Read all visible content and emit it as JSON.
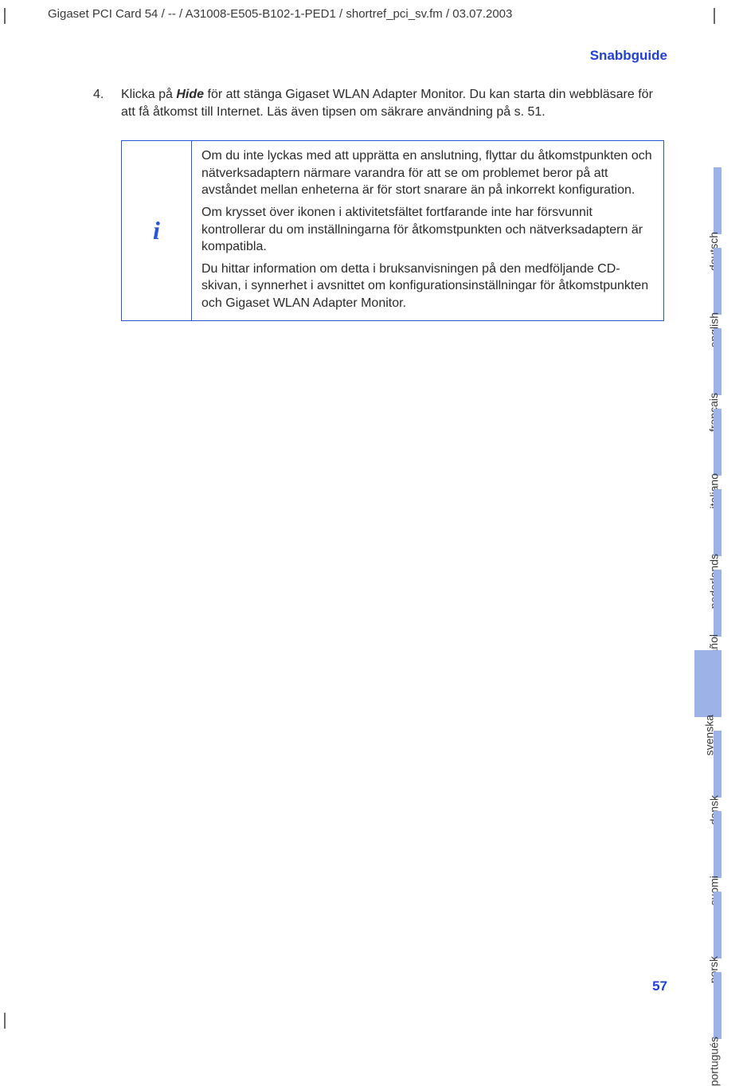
{
  "header": "Gigaset PCI Card 54 / -- / A31008-E505-B102-1-PED1 / shortref_pci_sv.fm / 03.07.2003",
  "section_title": "Snabbguide",
  "page_number": "57",
  "list": {
    "num": "4.",
    "pre": "Klicka på ",
    "bold": "Hide",
    "post": " för att stänga Gigaset WLAN Adapter Monitor. Du kan starta din webbläsare för att få åtkomst till Internet. Läs även tipsen om säkrare användning på s. 51."
  },
  "info": {
    "icon": "i",
    "p1": "Om du inte lyckas med att upprätta en anslutning, flyttar du åtkomstpunkten och nätverksadaptern närmare varandra för att se om problemet beror på att avståndet mellan enheterna är för stort snarare än på inkorrekt konfiguration.",
    "p2": "Om krysset över ikonen i aktivitetsfältet fortfarande inte har försvunnit kontrollerar du om inställningarna för åtkomstpunkten och nätverksadaptern är kompatibla.",
    "p3": "Du hittar information om detta i bruksanvisningen på den medföljande CD-skivan, i synnerhet i avsnittet om konfigurationsinställningar för åtkomstpunkten och Gigaset WLAN Adapter Monitor."
  },
  "tabs": [
    {
      "label": "deutsch",
      "active": false
    },
    {
      "label": "english",
      "active": false
    },
    {
      "label": "français",
      "active": false
    },
    {
      "label": "italiano",
      "active": false
    },
    {
      "label": "nederlands",
      "active": false
    },
    {
      "label": "español",
      "active": false
    },
    {
      "label": "svenska",
      "active": true
    },
    {
      "label": "dansk",
      "active": false
    },
    {
      "label": "suomi",
      "active": false
    },
    {
      "label": "norsk",
      "active": false
    },
    {
      "label": "portugués",
      "active": false
    }
  ],
  "colors": {
    "accent_blue": "#2040d8",
    "box_border": "#2a55d4",
    "tab_fill": "#9db3e8",
    "text": "#2b2b2b"
  }
}
